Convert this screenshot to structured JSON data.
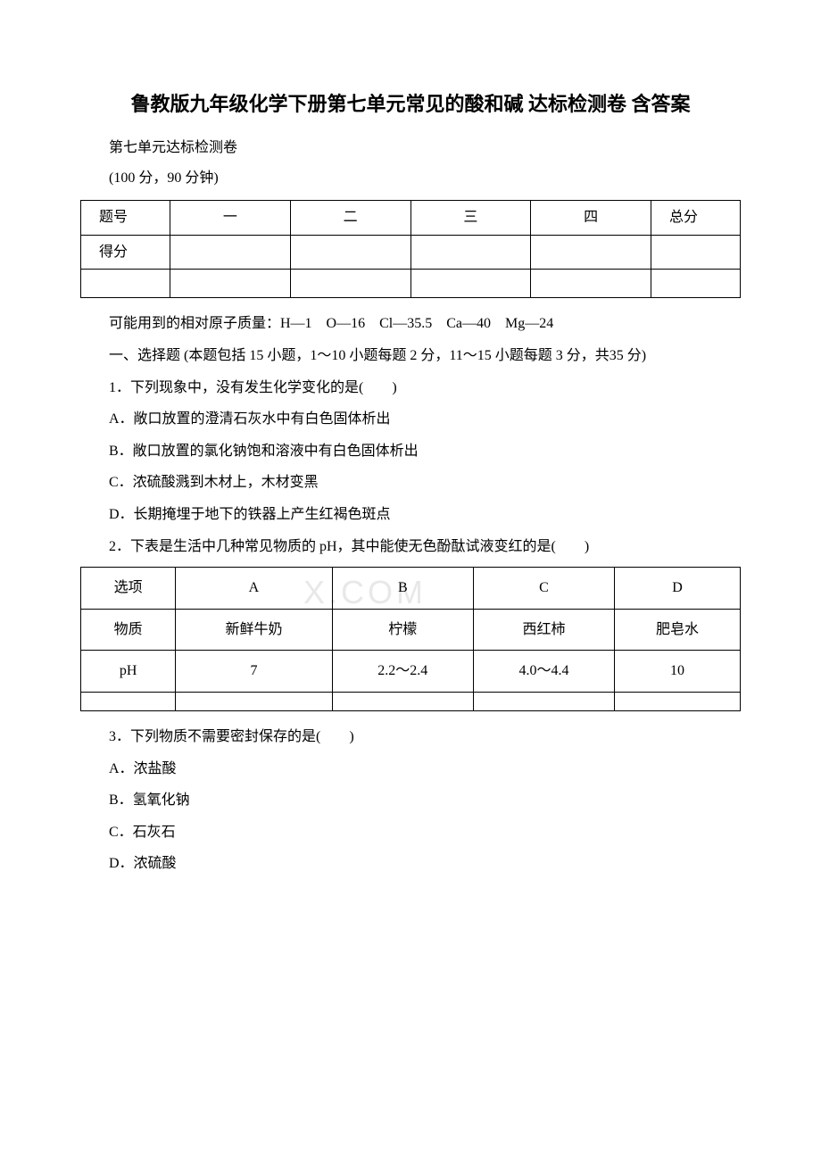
{
  "title": "鲁教版九年级化学下册第七单元常见的酸和碱 达标检测卷 含答案",
  "subtitle": "第七单元达标检测卷",
  "exam_info": "(100 分，90 分钟)",
  "watermark": "X.COM",
  "score_table": {
    "row1_label": "题号",
    "row1_cells": [
      "一",
      "二",
      "三",
      "四",
      "总分"
    ],
    "row2_label": "得分",
    "row2_cells": [
      "",
      "",
      "",
      "",
      ""
    ],
    "row3_cells": [
      "",
      "",
      "",
      "",
      "",
      ""
    ]
  },
  "atomic_mass": "可能用到的相对原子质量：H—1　O—16　Cl—35.5　Ca—40　Mg—24",
  "section1_heading": "一、选择题 (本题包括 15 小题，1～10 小题每题 2 分，11～15 小题每题 3 分，共35 分)",
  "q1": {
    "stem": "1．下列现象中，没有发生化学变化的是(　　)",
    "a": "A．敞口放置的澄清石灰水中有白色固体析出",
    "b": "B．敞口放置的氯化钠饱和溶液中有白色固体析出",
    "c": "C．浓硫酸溅到木材上，木材变黑",
    "d": "D．长期掩埋于地下的铁器上产生红褐色斑点"
  },
  "q2": {
    "stem": "2．下表是生活中几种常见物质的 pH，其中能使无色酚酞试液变红的是(　　)",
    "table": {
      "headers": [
        "选项",
        "A",
        "B",
        "C",
        "D"
      ],
      "row_substance_label": "物质",
      "row_substance": [
        "新鲜牛奶",
        "柠檬",
        "西红柿",
        "肥皂水"
      ],
      "row_ph_label": "pH",
      "row_ph": [
        "7",
        "2.2～2.4",
        "4.0～4.4",
        "10"
      ],
      "row_empty": [
        "",
        "",
        "",
        "",
        ""
      ]
    }
  },
  "q3": {
    "stem": "3．下列物质不需要密封保存的是(　　)",
    "a": "A．浓盐酸",
    "b": "B．氢氧化钠",
    "c": "C．石灰石",
    "d": "D．浓硫酸"
  }
}
